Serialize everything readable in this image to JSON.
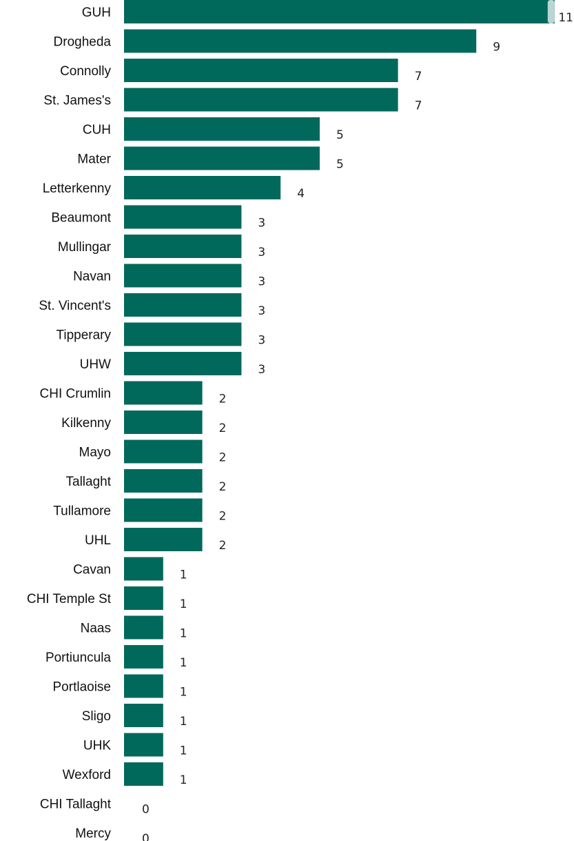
{
  "chart_data": {
    "type": "bar",
    "orientation": "horizontal",
    "categories": [
      "GUH",
      "Drogheda",
      "Connolly",
      "St. James's",
      "CUH",
      "Mater",
      "Letterkenny",
      "Beaumont",
      "Mullingar",
      "Navan",
      "St. Vincent's",
      "Tipperary",
      "UHW",
      "CHI Crumlin",
      "Kilkenny",
      "Mayo",
      "Tallaght",
      "Tullamore",
      "UHL",
      "Cavan",
      "CHI Temple St",
      "Naas",
      "Portiuncula",
      "Portlaoise",
      "Sligo",
      "UHK",
      "Wexford",
      "CHI Tallaght",
      "Mercy"
    ],
    "values": [
      11,
      9,
      7,
      7,
      5,
      5,
      4,
      3,
      3,
      3,
      3,
      3,
      3,
      2,
      2,
      2,
      2,
      2,
      2,
      1,
      1,
      1,
      1,
      1,
      1,
      1,
      1,
      0,
      0
    ],
    "title": "",
    "xlabel": "",
    "ylabel": "",
    "xlim": [
      0,
      11
    ],
    "grid": false,
    "legend": "none",
    "bar_color": "#00695C",
    "highlight_color": "#B9D6D2"
  }
}
